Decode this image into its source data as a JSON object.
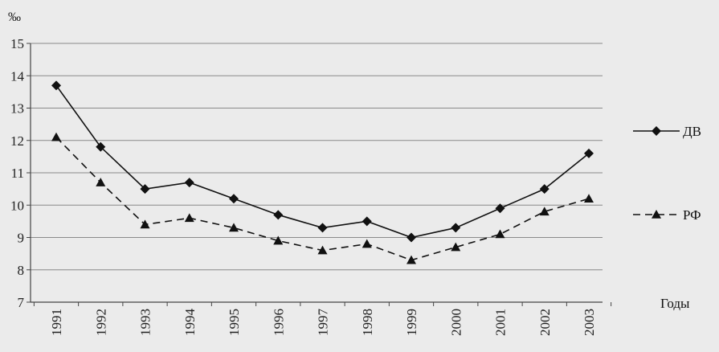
{
  "chart_data": {
    "type": "line",
    "title": "",
    "ylabel": "‰",
    "xlabel": "Годы",
    "ylim": [
      7,
      15
    ],
    "yticks": [
      7,
      8,
      9,
      10,
      11,
      12,
      13,
      14,
      15
    ],
    "grid": true,
    "legend_placement": "right",
    "x": [
      "1991",
      "1992",
      "1993",
      "1994",
      "1995",
      "1996",
      "1997",
      "1998",
      "1999",
      "2000",
      "2001",
      "2002",
      "2003"
    ],
    "series": [
      {
        "name": "ДВ",
        "style": "solid",
        "marker": "diamond",
        "values": [
          13.7,
          11.8,
          10.5,
          10.7,
          10.2,
          9.7,
          9.3,
          9.5,
          9.0,
          9.3,
          9.9,
          10.5,
          11.6
        ]
      },
      {
        "name": "РФ",
        "style": "dashed",
        "marker": "triangle",
        "values": [
          12.1,
          10.7,
          9.4,
          9.6,
          9.3,
          8.9,
          8.6,
          8.8,
          8.3,
          8.7,
          9.1,
          9.8,
          10.2
        ]
      }
    ]
  }
}
